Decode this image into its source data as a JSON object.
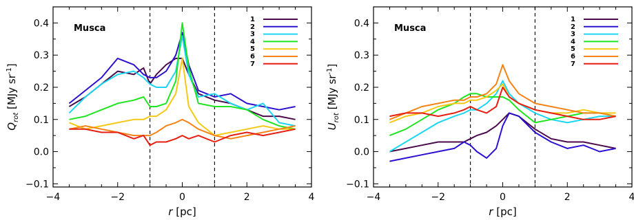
{
  "chart_data": [
    {
      "type": "line",
      "panel_label": "Musca",
      "xlabel": "r [pc]",
      "ylabel": "Q_rot [MJy sr^-1]",
      "xlim": [
        -4,
        4
      ],
      "ylim": [
        -0.11,
        0.45
      ],
      "xticks": [
        "−4",
        "−2",
        "0",
        "2",
        "4"
      ],
      "yticks": [
        "−0.1",
        "0.0",
        "0.1",
        "0.2",
        "0.3",
        "0.4"
      ],
      "xtick_values": [
        -4,
        -2,
        0,
        2,
        4
      ],
      "ytick_values": [
        -0.1,
        0.0,
        0.1,
        0.2,
        0.3,
        0.4
      ],
      "vlines": [
        -1,
        1
      ],
      "legend_position": "top-right",
      "series": [
        {
          "name": "1",
          "color": "#4a0a4a",
          "x": [
            -3.5,
            -3.0,
            -2.5,
            -2.0,
            -1.5,
            -1.2,
            -1.0,
            -0.8,
            -0.5,
            -0.2,
            0.0,
            0.2,
            0.5,
            1.0,
            1.5,
            2.0,
            2.5,
            3.0,
            3.5
          ],
          "y": [
            0.14,
            0.17,
            0.21,
            0.25,
            0.24,
            0.26,
            0.21,
            0.24,
            0.27,
            0.29,
            0.29,
            0.24,
            0.18,
            0.16,
            0.15,
            0.13,
            0.11,
            0.11,
            0.1
          ]
        },
        {
          "name": "2",
          "color": "#2a10d0",
          "x": [
            -3.5,
            -3.0,
            -2.5,
            -2.0,
            -1.5,
            -1.2,
            -1.0,
            -0.8,
            -0.5,
            -0.2,
            0.0,
            0.2,
            0.5,
            1.0,
            1.5,
            2.0,
            2.5,
            3.0,
            3.5
          ],
          "y": [
            0.15,
            0.19,
            0.23,
            0.29,
            0.27,
            0.24,
            0.23,
            0.23,
            0.25,
            0.3,
            0.37,
            0.27,
            0.19,
            0.17,
            0.18,
            0.15,
            0.14,
            0.13,
            0.14
          ]
        },
        {
          "name": "3",
          "color": "#1ad6f0",
          "x": [
            -3.5,
            -3.0,
            -2.5,
            -2.0,
            -1.5,
            -1.2,
            -1.0,
            -0.8,
            -0.5,
            -0.2,
            0.0,
            0.2,
            0.5,
            1.0,
            1.5,
            2.0,
            2.5,
            3.0,
            3.5
          ],
          "y": [
            0.12,
            0.17,
            0.21,
            0.24,
            0.25,
            0.23,
            0.21,
            0.2,
            0.2,
            0.25,
            0.36,
            0.24,
            0.17,
            0.18,
            0.15,
            0.13,
            0.15,
            0.09,
            0.08
          ]
        },
        {
          "name": "4",
          "color": "#1ee61e",
          "x": [
            -3.5,
            -3.0,
            -2.5,
            -2.0,
            -1.5,
            -1.2,
            -1.0,
            -0.8,
            -0.5,
            -0.2,
            0.0,
            0.2,
            0.5,
            1.0,
            1.5,
            2.0,
            2.5,
            3.0,
            3.5
          ],
          "y": [
            0.1,
            0.11,
            0.13,
            0.15,
            0.16,
            0.17,
            0.14,
            0.14,
            0.15,
            0.22,
            0.4,
            0.26,
            0.15,
            0.14,
            0.14,
            0.13,
            0.1,
            0.08,
            0.07
          ]
        },
        {
          "name": "5",
          "color": "#f5c814",
          "x": [
            -3.5,
            -3.0,
            -2.5,
            -2.0,
            -1.5,
            -1.2,
            -1.0,
            -0.8,
            -0.5,
            -0.2,
            0.0,
            0.2,
            0.5,
            1.0,
            1.5,
            2.0,
            2.5,
            3.0,
            3.5
          ],
          "y": [
            0.09,
            0.07,
            0.08,
            0.09,
            0.1,
            0.1,
            0.11,
            0.11,
            0.13,
            0.18,
            0.29,
            0.14,
            0.09,
            0.05,
            0.06,
            0.07,
            0.08,
            0.07,
            0.07
          ]
        },
        {
          "name": "6",
          "color": "#f58214",
          "x": [
            -3.5,
            -3.0,
            -2.5,
            -2.0,
            -1.5,
            -1.2,
            -1.0,
            -0.8,
            -0.5,
            -0.2,
            0.0,
            0.2,
            0.5,
            1.0,
            1.5,
            2.0,
            2.5,
            3.0,
            3.5
          ],
          "y": [
            0.07,
            0.08,
            0.07,
            0.06,
            0.05,
            0.05,
            0.05,
            0.06,
            0.08,
            0.09,
            0.1,
            0.09,
            0.07,
            0.05,
            0.04,
            0.05,
            0.06,
            0.07,
            0.08
          ]
        },
        {
          "name": "7",
          "color": "#e61e0f",
          "x": [
            -3.5,
            -3.0,
            -2.5,
            -2.0,
            -1.5,
            -1.2,
            -1.0,
            -0.8,
            -0.5,
            -0.2,
            0.0,
            0.2,
            0.5,
            1.0,
            1.5,
            2.0,
            2.5,
            3.0,
            3.5
          ],
          "y": [
            0.07,
            0.07,
            0.06,
            0.06,
            0.04,
            0.05,
            0.02,
            0.03,
            0.03,
            0.04,
            0.05,
            0.04,
            0.05,
            0.03,
            0.05,
            0.06,
            0.05,
            0.06,
            0.07
          ]
        }
      ]
    },
    {
      "type": "line",
      "panel_label": "Musca",
      "xlabel": "r [pc]",
      "ylabel": "U_rot [MJy sr^-1]",
      "xlim": [
        -4,
        4
      ],
      "ylim": [
        -0.11,
        0.45
      ],
      "xticks": [
        "−4",
        "−2",
        "0",
        "2",
        "4"
      ],
      "yticks": [
        "−0.1",
        "0.0",
        "0.1",
        "0.2",
        "0.3",
        "0.4"
      ],
      "xtick_values": [
        -4,
        -2,
        0,
        2,
        4
      ],
      "ytick_values": [
        -0.1,
        0.0,
        0.1,
        0.2,
        0.3,
        0.4
      ],
      "vlines": [
        -1,
        1
      ],
      "legend_position": "top-right",
      "series": [
        {
          "name": "1",
          "color": "#4a0a4a",
          "x": [
            -3.5,
            -3.0,
            -2.5,
            -2.0,
            -1.5,
            -1.2,
            -1.0,
            -0.8,
            -0.5,
            -0.2,
            0.0,
            0.2,
            0.5,
            1.0,
            1.5,
            2.0,
            2.5,
            3.0,
            3.5
          ],
          "y": [
            0.0,
            0.01,
            0.02,
            0.03,
            0.03,
            0.03,
            0.04,
            0.05,
            0.06,
            0.08,
            0.1,
            0.12,
            0.11,
            0.07,
            0.04,
            0.03,
            0.03,
            0.02,
            0.01
          ]
        },
        {
          "name": "2",
          "color": "#2a10d0",
          "x": [
            -3.5,
            -3.0,
            -2.5,
            -2.0,
            -1.5,
            -1.2,
            -1.0,
            -0.8,
            -0.5,
            -0.2,
            0.0,
            0.2,
            0.5,
            1.0,
            1.5,
            2.0,
            2.5,
            3.0,
            3.5
          ],
          "y": [
            -0.03,
            -0.02,
            -0.01,
            0.0,
            0.01,
            0.03,
            0.02,
            0.0,
            -0.02,
            0.01,
            0.08,
            0.12,
            0.11,
            0.06,
            0.03,
            0.01,
            0.02,
            0.0,
            0.01
          ]
        },
        {
          "name": "3",
          "color": "#1ad6f0",
          "x": [
            -3.5,
            -3.0,
            -2.5,
            -2.0,
            -1.5,
            -1.2,
            -1.0,
            -0.8,
            -0.5,
            -0.2,
            0.0,
            0.2,
            0.5,
            1.0,
            1.5,
            2.0,
            2.5,
            3.0,
            3.5
          ],
          "y": [
            0.0,
            0.03,
            0.06,
            0.09,
            0.11,
            0.12,
            0.13,
            0.13,
            0.15,
            0.18,
            0.22,
            0.18,
            0.15,
            0.12,
            0.1,
            0.09,
            0.1,
            0.11,
            0.11
          ]
        },
        {
          "name": "4",
          "color": "#1ee61e",
          "x": [
            -3.5,
            -3.0,
            -2.5,
            -2.0,
            -1.5,
            -1.2,
            -1.0,
            -0.8,
            -0.5,
            -0.2,
            0.0,
            0.2,
            0.5,
            1.0,
            1.5,
            2.0,
            2.5,
            3.0,
            3.5
          ],
          "y": [
            0.05,
            0.07,
            0.1,
            0.13,
            0.15,
            0.17,
            0.18,
            0.18,
            0.17,
            0.17,
            0.17,
            0.16,
            0.13,
            0.09,
            0.1,
            0.11,
            0.12,
            0.12,
            0.11
          ]
        },
        {
          "name": "5",
          "color": "#f5c814",
          "x": [
            -3.5,
            -3.0,
            -2.5,
            -2.0,
            -1.5,
            -1.2,
            -1.0,
            -0.8,
            -0.5,
            -0.2,
            0.0,
            0.2,
            0.5,
            1.0,
            1.5,
            2.0,
            2.5,
            3.0,
            3.5
          ],
          "y": [
            0.09,
            0.11,
            0.12,
            0.14,
            0.15,
            0.15,
            0.16,
            0.16,
            0.17,
            0.19,
            0.21,
            0.17,
            0.15,
            0.13,
            0.12,
            0.12,
            0.13,
            0.12,
            0.12
          ]
        },
        {
          "name": "6",
          "color": "#f58214",
          "x": [
            -3.5,
            -3.0,
            -2.5,
            -2.0,
            -1.5,
            -1.2,
            -1.0,
            -0.8,
            -0.5,
            -0.2,
            0.0,
            0.2,
            0.5,
            1.0,
            1.5,
            2.0,
            2.5,
            3.0,
            3.5
          ],
          "y": [
            0.1,
            0.12,
            0.14,
            0.15,
            0.16,
            0.16,
            0.17,
            0.17,
            0.18,
            0.21,
            0.27,
            0.22,
            0.18,
            0.15,
            0.14,
            0.13,
            0.12,
            0.12,
            0.11
          ]
        },
        {
          "name": "7",
          "color": "#e61e0f",
          "x": [
            -3.5,
            -3.0,
            -2.5,
            -2.0,
            -1.5,
            -1.2,
            -1.0,
            -0.8,
            -0.5,
            -0.2,
            0.0,
            0.2,
            0.5,
            1.0,
            1.5,
            2.0,
            2.5,
            3.0,
            3.5
          ],
          "y": [
            0.11,
            0.12,
            0.12,
            0.11,
            0.12,
            0.13,
            0.14,
            0.13,
            0.12,
            0.14,
            0.2,
            0.17,
            0.15,
            0.13,
            0.12,
            0.11,
            0.1,
            0.1,
            0.11
          ]
        }
      ]
    }
  ]
}
